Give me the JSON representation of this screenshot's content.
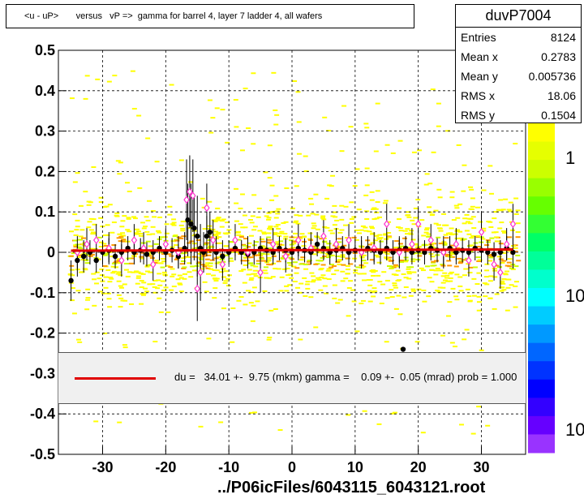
{
  "title": "<u - uP>       versus   vP =>  gamma for barrel 4, layer 7 ladder 4, all wafers",
  "stats": {
    "name": "duvP7004",
    "rows": [
      {
        "label": "Entries",
        "value": "8124"
      },
      {
        "label": "Mean x",
        "value": "0.2783"
      },
      {
        "label": "Mean y",
        "value": "0.005736"
      },
      {
        "label": "RMS x",
        "value": "18.06"
      },
      {
        "label": "RMS y",
        "value": "0.1504"
      }
    ]
  },
  "legend_text": "du =   34.01 +-  9.75 (mkm) gamma =    0.09 +-  0.05 (mrad) prob = 1.000",
  "footer": "../P06icFiles/6043115_6043121.root",
  "colorbar_labels": [
    "1",
    "10",
    "10"
  ],
  "colors": {
    "fit_line": "#e00000",
    "profile_black": "#000000",
    "profile_open": "#ff33cc"
  },
  "chart_data": {
    "type": "scatter",
    "xlim": [
      -37,
      37
    ],
    "ylim": [
      -0.5,
      0.5
    ],
    "x_ticks": [
      -30,
      -20,
      -10,
      0,
      10,
      20,
      30
    ],
    "y_ticks": [
      0.5,
      0.4,
      0.3,
      0.2,
      0.1,
      0,
      -0.1,
      -0.2,
      -0.3,
      -0.4,
      -0.5
    ],
    "x_tick_labels": [
      "-30",
      "-20",
      "-10",
      "0",
      "10",
      "20",
      "30"
    ],
    "y_tick_labels": [
      "0.5",
      "0.4",
      "0.3",
      "0.2",
      "0.1",
      "0",
      "-0.1",
      "-0.2",
      "-0.3",
      "-0.4",
      "-0.5"
    ],
    "grid": true,
    "fit_line": {
      "x": [
        -35,
        35
      ],
      "y": [
        0.004,
        0.007
      ]
    },
    "series": [
      {
        "marker": "filled-circle",
        "x": [
          -35,
          -34,
          -33,
          -32,
          -31,
          -30,
          -29,
          -28,
          -27,
          -26,
          -25,
          -24,
          -23,
          -22,
          -21,
          -20,
          -19,
          -18,
          -17,
          -16.5,
          -16,
          -15.5,
          -15,
          -14.5,
          -14,
          -13.5,
          -13,
          -12,
          -11,
          -10,
          -9,
          -8,
          -7,
          -6,
          -5,
          -4,
          -3,
          -2,
          -1,
          0,
          1,
          2,
          3,
          4,
          5,
          6,
          7,
          8,
          9,
          10,
          11,
          12,
          13,
          14,
          15,
          16,
          17,
          18,
          19,
          20,
          21,
          22,
          23,
          24,
          25,
          26,
          27,
          28,
          29,
          30,
          31,
          32,
          33,
          34,
          35,
          17.6
        ],
        "y": [
          -0.07,
          -0.02,
          -0.01,
          0.0,
          -0.02,
          0.0,
          0.005,
          -0.01,
          0.0,
          0.01,
          0.0,
          0.005,
          -0.005,
          0.0,
          0.01,
          0.0,
          0.005,
          -0.01,
          0.01,
          0.08,
          0.07,
          0.06,
          0.04,
          0.01,
          0.0,
          0.04,
          0.05,
          0.0,
          -0.01,
          0.0,
          0.01,
          0.0,
          -0.005,
          0.0,
          0.01,
          0.005,
          0.0,
          0.01,
          0.005,
          0.0,
          0.01,
          0.005,
          0.0,
          0.02,
          0.01,
          0.0,
          0.005,
          0.01,
          0.0,
          0.005,
          0.0,
          0.01,
          0.005,
          0.0,
          0.01,
          0.0,
          0.005,
          0.01,
          0.0,
          0.005,
          0.0,
          0.01,
          0.005,
          0.0,
          0.01,
          0.0,
          0.005,
          0.0,
          0.01,
          0.005,
          0.0,
          -0.005,
          0.0,
          0.01,
          0.0,
          -0.24
        ],
        "err": [
          0.05,
          0.04,
          0.04,
          0.03,
          0.03,
          0.03,
          0.03,
          0.03,
          0.03,
          0.03,
          0.03,
          0.03,
          0.03,
          0.03,
          0.03,
          0.03,
          0.03,
          0.03,
          0.04,
          0.09,
          0.1,
          0.08,
          0.1,
          0.06,
          0.05,
          0.05,
          0.05,
          0.04,
          0.04,
          0.03,
          0.03,
          0.03,
          0.03,
          0.03,
          0.03,
          0.03,
          0.03,
          0.03,
          0.03,
          0.03,
          0.03,
          0.03,
          0.03,
          0.03,
          0.03,
          0.03,
          0.03,
          0.03,
          0.03,
          0.03,
          0.03,
          0.03,
          0.03,
          0.03,
          0.03,
          0.03,
          0.03,
          0.03,
          0.03,
          0.03,
          0.03,
          0.03,
          0.03,
          0.03,
          0.03,
          0.03,
          0.03,
          0.03,
          0.03,
          0.03,
          0.03,
          0.03,
          0.03,
          0.03,
          0.04,
          0.0
        ]
      },
      {
        "marker": "open-diamond",
        "x": [
          -34,
          -32.5,
          -31,
          -29,
          -27,
          -25,
          -23.5,
          -22,
          -20,
          -18,
          -16.7,
          -16.2,
          -15.7,
          -15,
          -14.5,
          -13.5,
          -12.5,
          -11,
          -9,
          -7,
          -5,
          -3,
          -1,
          1,
          3,
          5,
          7,
          9,
          11,
          13,
          15,
          17,
          19,
          20,
          22,
          24,
          26,
          28,
          30,
          32,
          33,
          34,
          35
        ],
        "y": [
          0.0,
          0.02,
          0.03,
          0.01,
          -0.02,
          0.03,
          0.01,
          -0.03,
          0.02,
          0.0,
          0.13,
          0.15,
          0.14,
          -0.09,
          -0.05,
          0.11,
          0.03,
          -0.03,
          0.03,
          0.0,
          -0.05,
          0.02,
          -0.01,
          0.03,
          0.01,
          0.04,
          0.02,
          0.03,
          0.0,
          0.01,
          0.07,
          0.0,
          0.02,
          0.07,
          0.03,
          0.0,
          0.02,
          -0.02,
          0.05,
          -0.03,
          -0.05,
          0.02,
          0.07
        ],
        "err": [
          0.04,
          0.04,
          0.04,
          0.04,
          0.04,
          0.04,
          0.04,
          0.04,
          0.04,
          0.04,
          0.1,
          0.09,
          0.09,
          0.08,
          0.07,
          0.06,
          0.05,
          0.04,
          0.04,
          0.04,
          0.05,
          0.04,
          0.04,
          0.04,
          0.04,
          0.04,
          0.04,
          0.04,
          0.04,
          0.04,
          0.05,
          0.04,
          0.04,
          0.04,
          0.04,
          0.04,
          0.04,
          0.04,
          0.05,
          0.04,
          0.04,
          0.04,
          0.05
        ]
      }
    ]
  }
}
